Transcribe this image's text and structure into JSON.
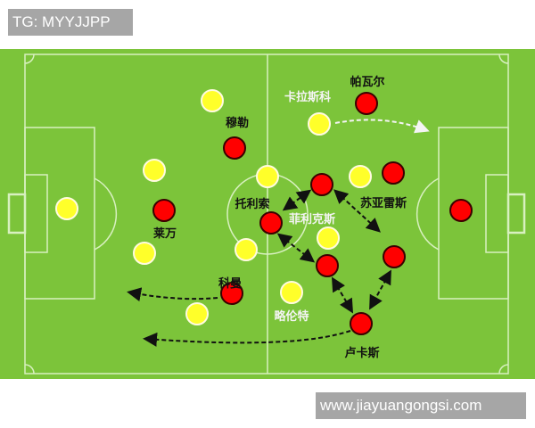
{
  "watermark_top": "TG: MYYJJPP",
  "watermark_bottom": "www.jiayuangongsi.com",
  "colors": {
    "pitch": "#7cc43a",
    "red_team": "#ff0000",
    "yellow_team": "#ffff2a",
    "line": "#d8f0c0"
  },
  "labels": {
    "pavard": "帕瓦尔",
    "carrasco": "卡拉斯科",
    "muller": "穆勒",
    "tolisso": "托利索",
    "suarez": "苏亚雷斯",
    "felix": "菲利克斯",
    "lewandowski": "莱万",
    "coman": "科曼",
    "llorente": "略伦特",
    "lucas": "卢卡斯"
  }
}
